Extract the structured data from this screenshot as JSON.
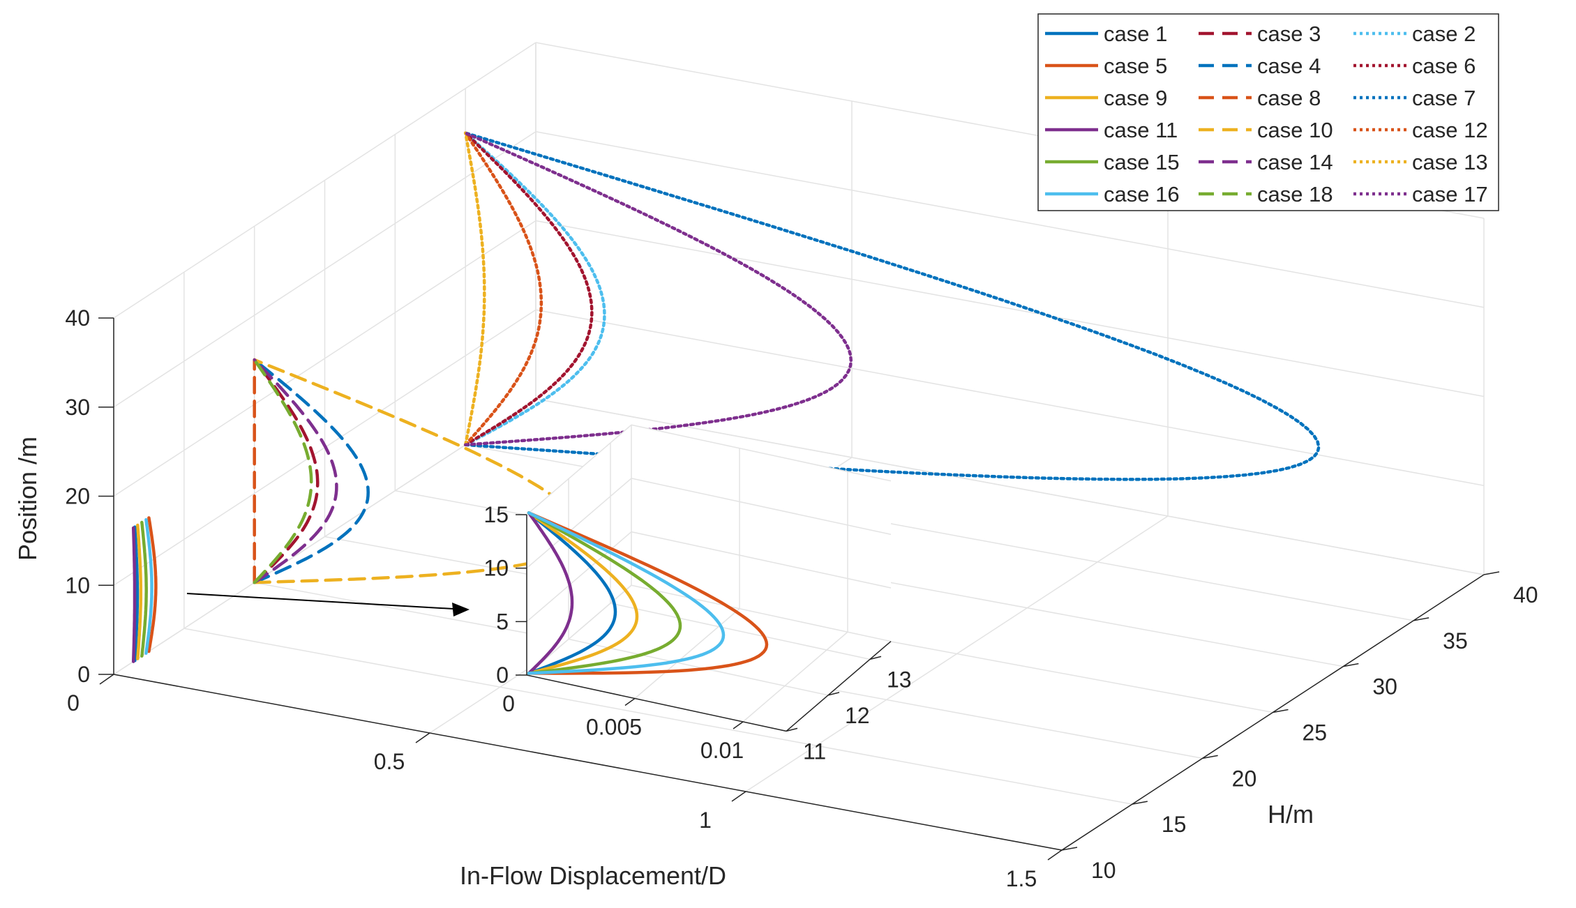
{
  "chart_data": {
    "type": "line",
    "title": "",
    "xlabel": "In-Flow Displacement/D",
    "ylabel": "H/m",
    "zlabel": "Position /m",
    "xlim": [
      0,
      1.5
    ],
    "ylim": [
      10,
      40
    ],
    "zlim": [
      0,
      40
    ],
    "x_ticks": [
      "0",
      "0.5",
      "1",
      "1.5"
    ],
    "y_ticks": [
      "10",
      "15",
      "20",
      "25",
      "30",
      "35",
      "40"
    ],
    "z_ticks": [
      "0",
      "10",
      "20",
      "30",
      "40"
    ],
    "grid": true,
    "legend_position": "top-right",
    "colors": [
      "#0072BD",
      "#D95319",
      "#EDB120",
      "#7E2F8E",
      "#77AC30",
      "#4DBEEE",
      "#A2142F"
    ],
    "profile_shape": "sin",
    "series": [
      {
        "name": "case 1",
        "style": "solid",
        "color": "#0072BD",
        "H": 11.5,
        "z_min": 0,
        "z_max": 15,
        "peak": 0.004
      },
      {
        "name": "case 5",
        "style": "solid",
        "color": "#D95319",
        "H": 12.5,
        "z_min": 0,
        "z_max": 15,
        "peak": 0.011
      },
      {
        "name": "case 9",
        "style": "solid",
        "color": "#EDB120",
        "H": 11.7,
        "z_min": 0,
        "z_max": 15,
        "peak": 0.005
      },
      {
        "name": "case 11",
        "style": "solid",
        "color": "#7E2F8E",
        "H": 11.4,
        "z_min": 0,
        "z_max": 15,
        "peak": 0.002
      },
      {
        "name": "case 15",
        "style": "solid",
        "color": "#77AC30",
        "H": 12.0,
        "z_min": 0,
        "z_max": 15,
        "peak": 0.007
      },
      {
        "name": "case 16",
        "style": "solid",
        "color": "#4DBEEE",
        "H": 12.3,
        "z_min": 0,
        "z_max": 15,
        "peak": 0.009
      },
      {
        "name": "case 3",
        "style": "dashed",
        "color": "#A2142F",
        "H": 20,
        "z_min": 0,
        "z_max": 25,
        "peak": 0.1
      },
      {
        "name": "case 4",
        "style": "dashed",
        "color": "#0072BD",
        "H": 20,
        "z_min": 0,
        "z_max": 25,
        "peak": 0.18
      },
      {
        "name": "case 8",
        "style": "dashed",
        "color": "#D95319",
        "H": 20,
        "z_min": 0,
        "z_max": 25,
        "peak": 0.0
      },
      {
        "name": "case 10",
        "style": "dashed",
        "color": "#EDB120",
        "H": 20,
        "z_min": 0,
        "z_max": 25,
        "peak": 0.52
      },
      {
        "name": "case 14",
        "style": "dashed",
        "color": "#7E2F8E",
        "H": 20,
        "z_min": 0,
        "z_max": 25,
        "peak": 0.13
      },
      {
        "name": "case 18",
        "style": "dashed",
        "color": "#77AC30",
        "H": 20,
        "z_min": 0,
        "z_max": 25,
        "peak": 0.09
      },
      {
        "name": "case 2",
        "style": "dotted",
        "color": "#4DBEEE",
        "H": 35,
        "z_min": 0,
        "z_max": 35,
        "peak": 0.22
      },
      {
        "name": "case 6",
        "style": "dotted",
        "color": "#A2142F",
        "H": 35,
        "z_min": 0,
        "z_max": 35,
        "peak": 0.2
      },
      {
        "name": "case 7",
        "style": "dotted",
        "color": "#0072BD",
        "H": 35,
        "z_min": 0,
        "z_max": 35,
        "peak": 1.35
      },
      {
        "name": "case 12",
        "style": "dotted",
        "color": "#D95319",
        "H": 35,
        "z_min": 0,
        "z_max": 35,
        "peak": 0.12
      },
      {
        "name": "case 13",
        "style": "dotted",
        "color": "#EDB120",
        "H": 35,
        "z_min": 0,
        "z_max": 35,
        "peak": 0.03
      },
      {
        "name": "case 17",
        "style": "dotted",
        "color": "#7E2F8E",
        "H": 35,
        "z_min": 0,
        "z_max": 35,
        "peak": 0.61
      }
    ],
    "inset": {
      "xlim": [
        0,
        0.012
      ],
      "ylim": [
        11,
        13.5
      ],
      "zlim": [
        0,
        15
      ],
      "x_ticks": [
        "0.005",
        "0.01"
      ],
      "y_ticks": [
        "11",
        "12",
        "13"
      ],
      "z_ticks": [
        "0",
        "5",
        "10",
        "15"
      ],
      "x_origin_label": "0",
      "series": [
        "case 1",
        "case 5",
        "case 9",
        "case 11",
        "case 15",
        "case 16"
      ]
    },
    "legend_columns": [
      [
        "case 1",
        "case 5",
        "case 9",
        "case 11",
        "case 15",
        "case 16"
      ],
      [
        "case 3",
        "case 4",
        "case 8",
        "case 10",
        "case 14",
        "case 18"
      ],
      [
        "case 2",
        "case 6",
        "case 7",
        "case 12",
        "case 13",
        "case 17"
      ]
    ]
  }
}
